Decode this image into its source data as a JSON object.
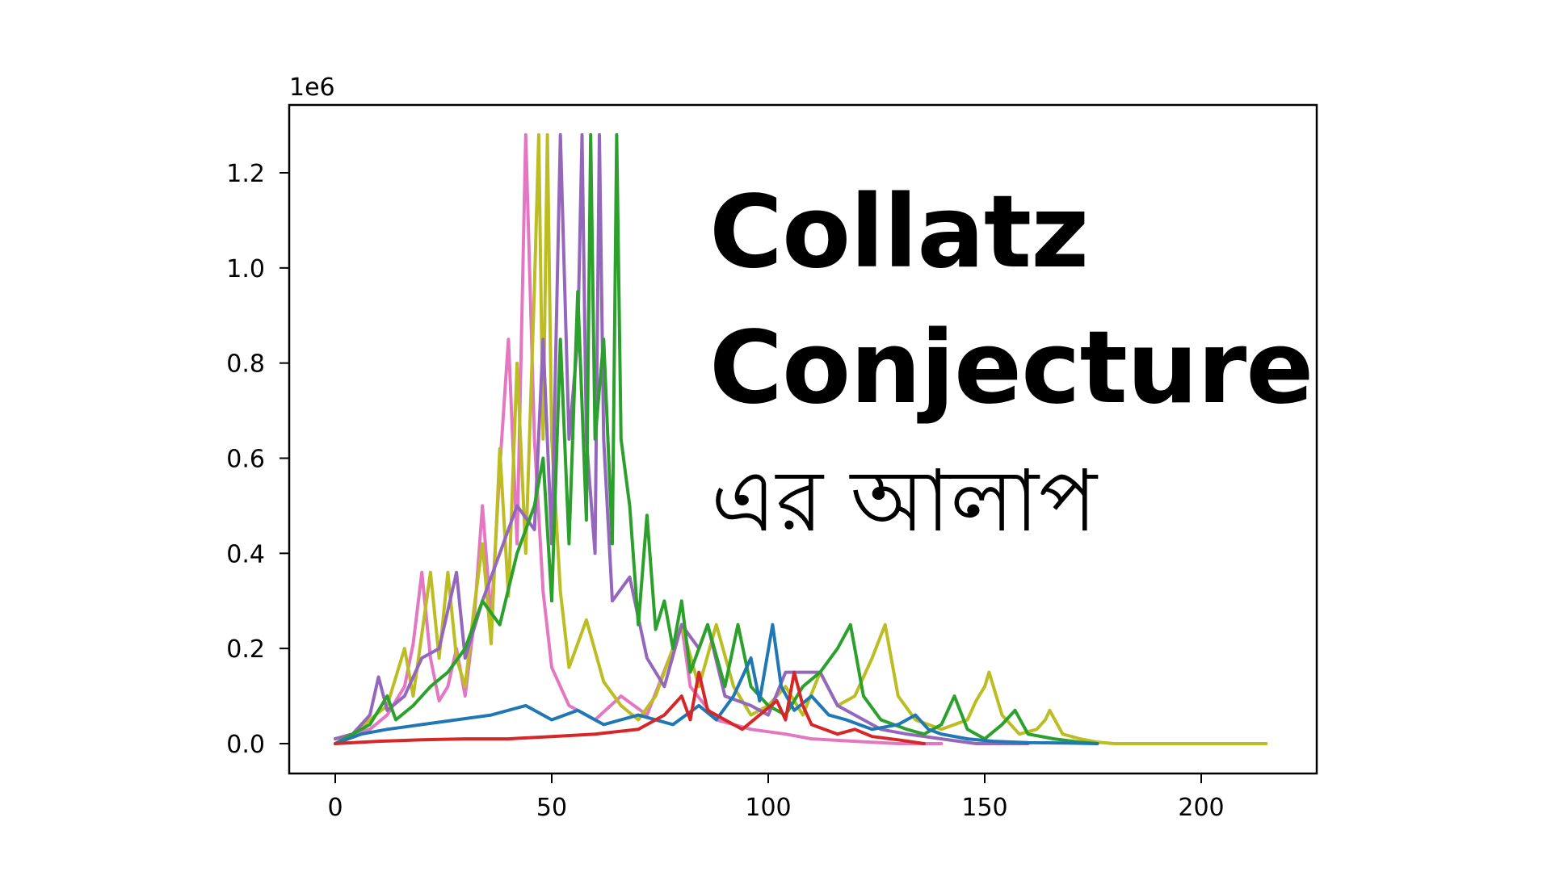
{
  "title": {
    "line1": "Collatz",
    "line2": "Conjecture",
    "line3": "এর আলাপ"
  },
  "axes": {
    "y_offset_label": "1e6",
    "x_ticks": [
      "0",
      "50",
      "100",
      "150",
      "200"
    ],
    "y_ticks": [
      "0.0",
      "0.2",
      "0.4",
      "0.6",
      "0.8",
      "1.0",
      "1.2"
    ]
  },
  "colors": {
    "blue": "#1f77b4",
    "red": "#d62728",
    "purple": "#9467bd",
    "pink": "#e377c2",
    "olive": "#bcbd22",
    "green": "#2ca02c"
  },
  "chart_data": {
    "type": "line",
    "title": "Collatz Conjecture এর আলাপ",
    "xlabel": "",
    "ylabel": "",
    "y_scale_offset": "1e6",
    "xlim": [
      -10,
      225
    ],
    "ylim": [
      -0.064,
      1.4
    ],
    "x_ticks": [
      0,
      50,
      100,
      150,
      200
    ],
    "y_ticks": [
      0.0,
      0.2,
      0.4,
      0.6,
      0.8,
      1.0,
      1.2
    ],
    "grid": false,
    "legend": "none",
    "description": "Collatz trajectory values (in millions) vs. step index for several starting numbers; many series overlap, peaking at ~1.28e6 around steps 44-65 and decaying to 1 by ~step 175-215.",
    "series": [
      {
        "name": "pink",
        "color": "#e377c2",
        "points": [
          [
            0,
            0.01
          ],
          [
            4,
            0.02
          ],
          [
            8,
            0.03
          ],
          [
            12,
            0.06
          ],
          [
            16,
            0.12
          ],
          [
            18,
            0.21
          ],
          [
            20,
            0.36
          ],
          [
            22,
            0.18
          ],
          [
            24,
            0.09
          ],
          [
            26,
            0.12
          ],
          [
            28,
            0.2
          ],
          [
            30,
            0.1
          ],
          [
            32,
            0.25
          ],
          [
            34,
            0.5
          ],
          [
            36,
            0.26
          ],
          [
            38,
            0.58
          ],
          [
            40,
            0.85
          ],
          [
            42,
            0.42
          ],
          [
            44,
            1.28
          ],
          [
            46,
            0.64
          ],
          [
            48,
            0.32
          ],
          [
            50,
            0.16
          ],
          [
            54,
            0.08
          ],
          [
            60,
            0.05
          ],
          [
            66,
            0.1
          ],
          [
            72,
            0.06
          ],
          [
            78,
            0.2
          ],
          [
            80,
            0.25
          ],
          [
            82,
            0.12
          ],
          [
            88,
            0.05
          ],
          [
            96,
            0.03
          ],
          [
            104,
            0.02
          ],
          [
            110,
            0.01
          ],
          [
            120,
            0.005
          ],
          [
            130,
            0.0
          ],
          [
            140,
            0.0
          ]
        ]
      },
      {
        "name": "olive",
        "color": "#bcbd22",
        "points": [
          [
            0,
            0.01
          ],
          [
            4,
            0.02
          ],
          [
            8,
            0.05
          ],
          [
            12,
            0.08
          ],
          [
            16,
            0.2
          ],
          [
            18,
            0.1
          ],
          [
            22,
            0.36
          ],
          [
            24,
            0.18
          ],
          [
            26,
            0.36
          ],
          [
            28,
            0.18
          ],
          [
            30,
            0.12
          ],
          [
            32,
            0.28
          ],
          [
            34,
            0.42
          ],
          [
            36,
            0.21
          ],
          [
            38,
            0.62
          ],
          [
            40,
            0.31
          ],
          [
            42,
            0.8
          ],
          [
            44,
            0.4
          ],
          [
            46,
            0.96
          ],
          [
            47,
            1.28
          ],
          [
            48,
            0.64
          ],
          [
            49,
            1.28
          ],
          [
            50,
            0.64
          ],
          [
            52,
            0.32
          ],
          [
            54,
            0.16
          ],
          [
            58,
            0.26
          ],
          [
            62,
            0.13
          ],
          [
            66,
            0.08
          ],
          [
            70,
            0.05
          ],
          [
            74,
            0.1
          ],
          [
            80,
            0.25
          ],
          [
            84,
            0.12
          ],
          [
            88,
            0.25
          ],
          [
            92,
            0.12
          ],
          [
            96,
            0.06
          ],
          [
            100,
            0.08
          ],
          [
            104,
            0.12
          ],
          [
            108,
            0.06
          ],
          [
            112,
            0.15
          ],
          [
            116,
            0.08
          ],
          [
            120,
            0.1
          ],
          [
            124,
            0.18
          ],
          [
            127,
            0.25
          ],
          [
            130,
            0.1
          ],
          [
            134,
            0.05
          ],
          [
            140,
            0.03
          ],
          [
            146,
            0.05
          ],
          [
            148,
            0.09
          ],
          [
            150,
            0.12
          ],
          [
            151,
            0.15
          ],
          [
            154,
            0.06
          ],
          [
            158,
            0.02
          ],
          [
            162,
            0.03
          ],
          [
            164,
            0.05
          ],
          [
            165,
            0.07
          ],
          [
            168,
            0.02
          ],
          [
            172,
            0.01
          ],
          [
            176,
            0.003
          ],
          [
            180,
            0.0
          ],
          [
            200,
            0.0
          ],
          [
            215,
            0.0
          ]
        ]
      },
      {
        "name": "purple",
        "color": "#9467bd",
        "points": [
          [
            0,
            0.01
          ],
          [
            4,
            0.02
          ],
          [
            8,
            0.06
          ],
          [
            10,
            0.14
          ],
          [
            12,
            0.07
          ],
          [
            16,
            0.1
          ],
          [
            20,
            0.18
          ],
          [
            24,
            0.2
          ],
          [
            28,
            0.36
          ],
          [
            30,
            0.18
          ],
          [
            34,
            0.3
          ],
          [
            38,
            0.4
          ],
          [
            42,
            0.5
          ],
          [
            46,
            0.45
          ],
          [
            48,
            0.85
          ],
          [
            50,
            0.42
          ],
          [
            52,
            1.28
          ],
          [
            54,
            0.64
          ],
          [
            56,
            0.85
          ],
          [
            57,
            1.28
          ],
          [
            58,
            0.64
          ],
          [
            60,
            0.4
          ],
          [
            61,
            1.28
          ],
          [
            62,
            0.64
          ],
          [
            64,
            0.3
          ],
          [
            68,
            0.35
          ],
          [
            72,
            0.18
          ],
          [
            76,
            0.12
          ],
          [
            80,
            0.25
          ],
          [
            84,
            0.2
          ],
          [
            86,
            0.25
          ],
          [
            90,
            0.1
          ],
          [
            96,
            0.08
          ],
          [
            100,
            0.06
          ],
          [
            104,
            0.15
          ],
          [
            108,
            0.15
          ],
          [
            112,
            0.15
          ],
          [
            116,
            0.08
          ],
          [
            120,
            0.06
          ],
          [
            126,
            0.03
          ],
          [
            132,
            0.02
          ],
          [
            140,
            0.01
          ],
          [
            148,
            0.0
          ],
          [
            160,
            0.0
          ]
        ]
      },
      {
        "name": "green",
        "color": "#2ca02c",
        "points": [
          [
            0,
            0.0
          ],
          [
            4,
            0.02
          ],
          [
            8,
            0.04
          ],
          [
            12,
            0.1
          ],
          [
            14,
            0.05
          ],
          [
            18,
            0.08
          ],
          [
            22,
            0.12
          ],
          [
            26,
            0.15
          ],
          [
            30,
            0.2
          ],
          [
            34,
            0.3
          ],
          [
            38,
            0.25
          ],
          [
            42,
            0.4
          ],
          [
            46,
            0.5
          ],
          [
            48,
            0.6
          ],
          [
            50,
            0.3
          ],
          [
            52,
            0.85
          ],
          [
            54,
            0.42
          ],
          [
            56,
            0.95
          ],
          [
            58,
            0.47
          ],
          [
            59,
            1.28
          ],
          [
            60,
            0.64
          ],
          [
            62,
            0.85
          ],
          [
            64,
            0.42
          ],
          [
            65,
            1.28
          ],
          [
            66,
            0.64
          ],
          [
            68,
            0.5
          ],
          [
            70,
            0.25
          ],
          [
            72,
            0.48
          ],
          [
            74,
            0.24
          ],
          [
            76,
            0.3
          ],
          [
            78,
            0.2
          ],
          [
            80,
            0.3
          ],
          [
            82,
            0.15
          ],
          [
            86,
            0.25
          ],
          [
            90,
            0.12
          ],
          [
            93,
            0.25
          ],
          [
            96,
            0.12
          ],
          [
            100,
            0.08
          ],
          [
            104,
            0.06
          ],
          [
            108,
            0.12
          ],
          [
            112,
            0.15
          ],
          [
            116,
            0.2
          ],
          [
            119,
            0.25
          ],
          [
            122,
            0.1
          ],
          [
            126,
            0.05
          ],
          [
            132,
            0.03
          ],
          [
            136,
            0.02
          ],
          [
            140,
            0.04
          ],
          [
            143,
            0.1
          ],
          [
            146,
            0.03
          ],
          [
            150,
            0.01
          ],
          [
            154,
            0.04
          ],
          [
            157,
            0.07
          ],
          [
            160,
            0.02
          ],
          [
            166,
            0.01
          ],
          [
            172,
            0.003
          ],
          [
            176,
            0.0
          ]
        ]
      },
      {
        "name": "blue",
        "color": "#1f77b4",
        "points": [
          [
            0,
            0.0
          ],
          [
            6,
            0.02
          ],
          [
            12,
            0.03
          ],
          [
            20,
            0.04
          ],
          [
            28,
            0.05
          ],
          [
            36,
            0.06
          ],
          [
            44,
            0.08
          ],
          [
            50,
            0.05
          ],
          [
            56,
            0.07
          ],
          [
            62,
            0.04
          ],
          [
            70,
            0.06
          ],
          [
            78,
            0.04
          ],
          [
            84,
            0.08
          ],
          [
            88,
            0.05
          ],
          [
            92,
            0.1
          ],
          [
            96,
            0.18
          ],
          [
            98,
            0.09
          ],
          [
            101,
            0.25
          ],
          [
            103,
            0.12
          ],
          [
            106,
            0.07
          ],
          [
            110,
            0.1
          ],
          [
            114,
            0.06
          ],
          [
            118,
            0.05
          ],
          [
            124,
            0.03
          ],
          [
            130,
            0.04
          ],
          [
            134,
            0.06
          ],
          [
            137,
            0.03
          ],
          [
            140,
            0.02
          ],
          [
            146,
            0.01
          ],
          [
            152,
            0.005
          ],
          [
            160,
            0.002
          ],
          [
            170,
            0.001
          ],
          [
            176,
            0.0
          ]
        ]
      },
      {
        "name": "red",
        "color": "#d62728",
        "points": [
          [
            0,
            0.0
          ],
          [
            10,
            0.005
          ],
          [
            20,
            0.008
          ],
          [
            30,
            0.01
          ],
          [
            40,
            0.01
          ],
          [
            50,
            0.015
          ],
          [
            60,
            0.02
          ],
          [
            70,
            0.03
          ],
          [
            76,
            0.06
          ],
          [
            80,
            0.1
          ],
          [
            82,
            0.05
          ],
          [
            84,
            0.15
          ],
          [
            86,
            0.07
          ],
          [
            90,
            0.05
          ],
          [
            94,
            0.03
          ],
          [
            98,
            0.06
          ],
          [
            102,
            0.09
          ],
          [
            104,
            0.05
          ],
          [
            106,
            0.15
          ],
          [
            108,
            0.08
          ],
          [
            110,
            0.04
          ],
          [
            116,
            0.02
          ],
          [
            120,
            0.03
          ],
          [
            124,
            0.015
          ],
          [
            130,
            0.008
          ],
          [
            136,
            0.0
          ]
        ]
      }
    ]
  }
}
